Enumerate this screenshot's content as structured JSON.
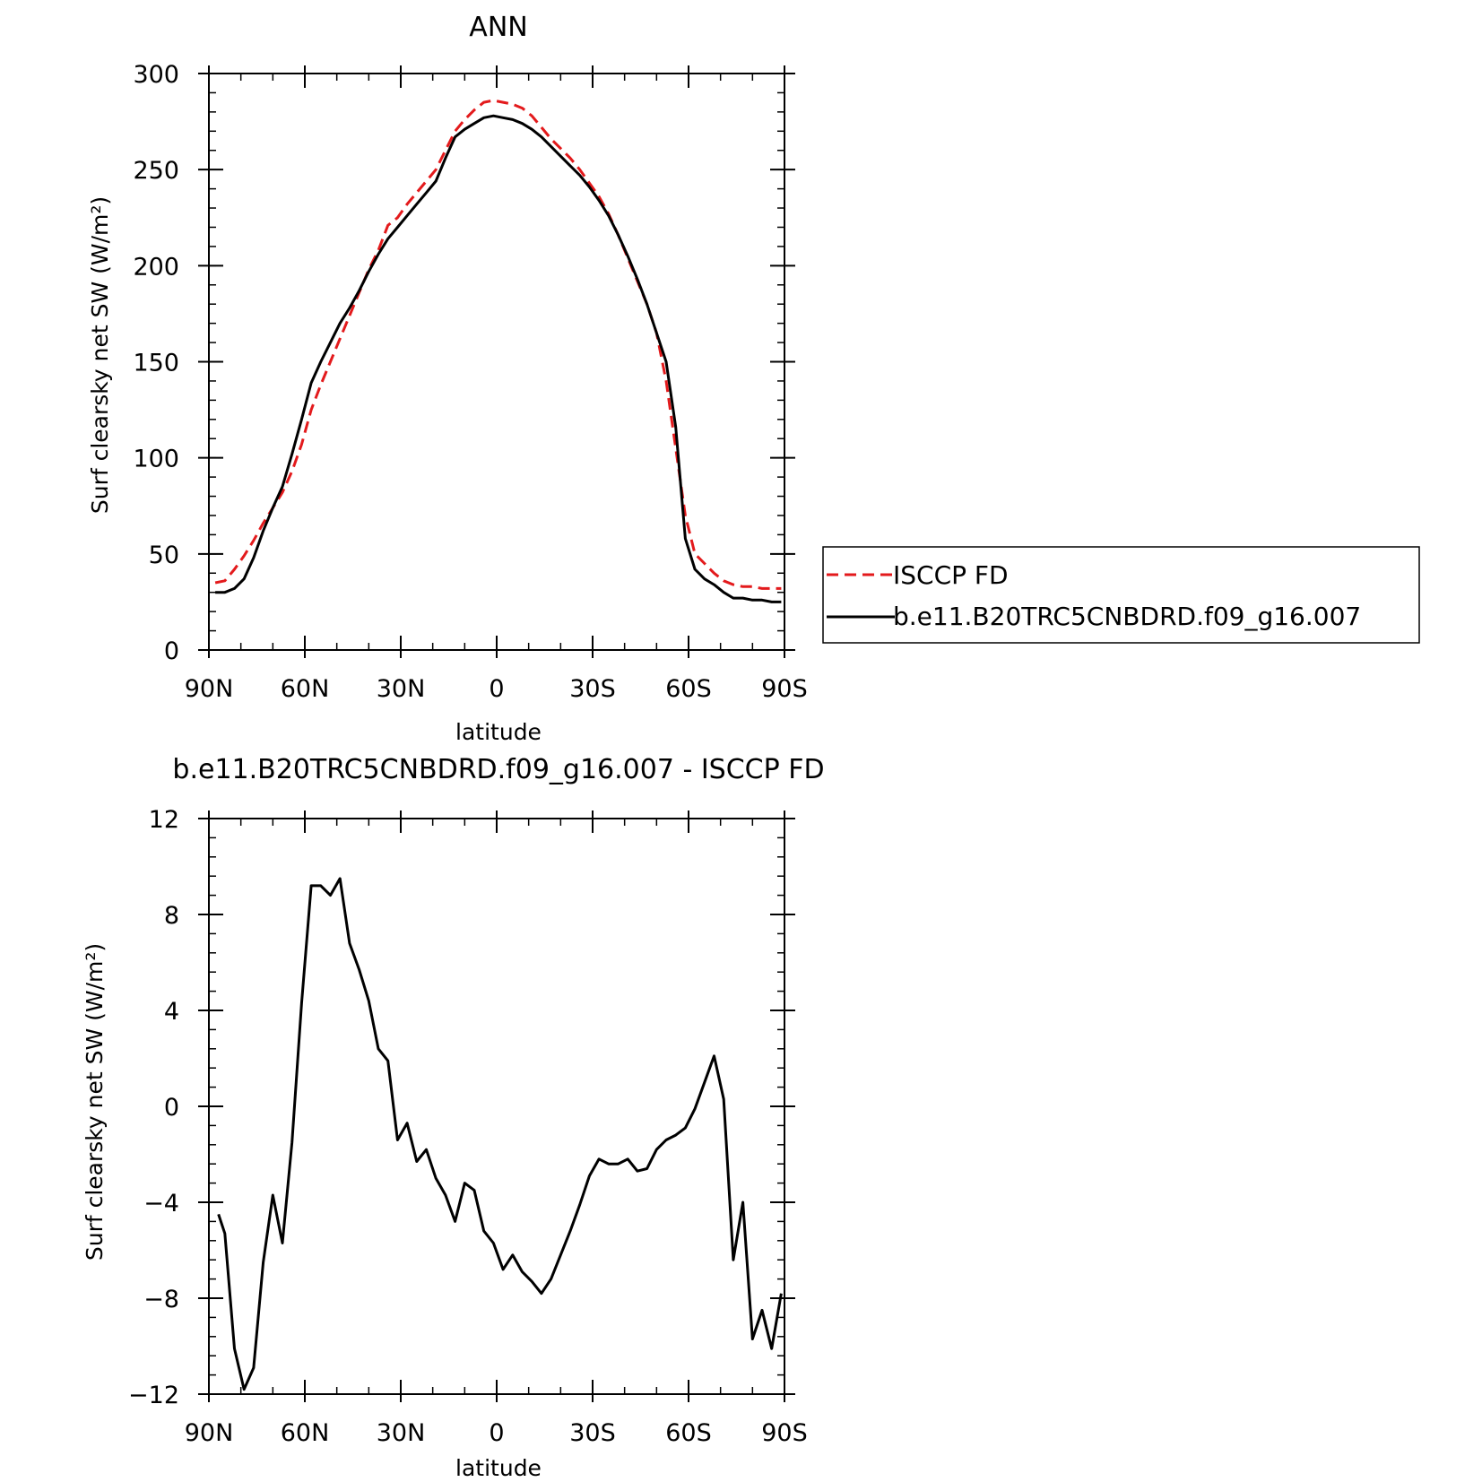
{
  "chart_data": [
    {
      "type": "line",
      "title": "ANN",
      "xlabel": "latitude",
      "ylabel": "Surf clearsky net SW (W/m²)",
      "xlim": [
        -90,
        90
      ],
      "ylim": [
        0,
        300
      ],
      "x_ticks": [
        -90,
        -60,
        -30,
        0,
        30,
        60,
        90
      ],
      "x_tick_labels": [
        "90N",
        "60N",
        "30N",
        "0",
        "30S",
        "60S",
        "90S"
      ],
      "y_ticks": [
        0,
        50,
        100,
        150,
        200,
        250,
        300
      ],
      "y_tick_labels": [
        "0",
        "50",
        "100",
        "150",
        "200",
        "250",
        "300"
      ],
      "legend_position": "right",
      "series": [
        {
          "name": "ISCCP FD",
          "color": "#e31a1c",
          "style": "dashed",
          "x": [
            -88,
            -85,
            -82,
            -79,
            -76,
            -73,
            -70,
            -67,
            -64,
            -61,
            -58,
            -55,
            -52,
            -49,
            -46,
            -43,
            -40,
            -37,
            -34,
            -31,
            -28,
            -25,
            -22,
            -19,
            -16,
            -13,
            -10,
            -7,
            -4,
            -1,
            2,
            5,
            8,
            11,
            14,
            17,
            20,
            23,
            26,
            29,
            32,
            35,
            38,
            41,
            44,
            47,
            50,
            53,
            56,
            59,
            62,
            65,
            68,
            71,
            74,
            77,
            80,
            83,
            86,
            89
          ],
          "y": [
            35,
            36,
            42,
            49,
            57,
            66,
            74,
            82,
            93,
            107,
            125,
            138,
            150,
            162,
            174,
            186,
            198,
            208,
            221,
            225,
            232,
            238,
            244,
            250,
            260,
            270,
            276,
            281,
            285,
            286,
            285,
            284,
            282,
            278,
            272,
            266,
            261,
            256,
            250,
            243,
            236,
            227,
            216,
            204,
            192,
            180,
            165,
            140,
            105,
            70,
            50,
            45,
            40,
            36,
            34,
            33,
            33,
            32,
            32,
            32
          ]
        },
        {
          "name": "b.e11.B20TRC5CNBDRD.f09_g16.007",
          "color": "#000000",
          "style": "solid",
          "x": [
            -88,
            -85,
            -82,
            -79,
            -76,
            -73,
            -70,
            -67,
            -64,
            -61,
            -58,
            -55,
            -52,
            -49,
            -46,
            -43,
            -40,
            -37,
            -34,
            -31,
            -28,
            -25,
            -22,
            -19,
            -16,
            -13,
            -10,
            -7,
            -4,
            -1,
            2,
            5,
            8,
            11,
            14,
            17,
            20,
            23,
            26,
            29,
            32,
            35,
            38,
            41,
            44,
            47,
            50,
            53,
            56,
            59,
            62,
            65,
            68,
            71,
            74,
            77,
            80,
            83,
            86,
            89
          ],
          "y": [
            30,
            30,
            32,
            37,
            48,
            62,
            74,
            85,
            102,
            120,
            139,
            150,
            160,
            170,
            178,
            187,
            197,
            206,
            214,
            220,
            226,
            232,
            238,
            244,
            256,
            267,
            271,
            274,
            277,
            278,
            277,
            276,
            274,
            271,
            267,
            262,
            257,
            252,
            247,
            241,
            234,
            226,
            216,
            205,
            193,
            180,
            165,
            150,
            116,
            58,
            42,
            37,
            34,
            30,
            27,
            27,
            26,
            26,
            25,
            25
          ]
        }
      ]
    },
    {
      "type": "line",
      "title": "b.e11.B20TRC5CNBDRD.f09_g16.007 - ISCCP FD",
      "xlabel": "latitude",
      "ylabel": "Surf clearsky net SW (W/m²)",
      "xlim": [
        -90,
        90
      ],
      "ylim": [
        -12,
        12
      ],
      "x_ticks": [
        -90,
        -60,
        -30,
        0,
        30,
        60,
        90
      ],
      "x_tick_labels": [
        "90N",
        "60N",
        "30N",
        "0",
        "30S",
        "60S",
        "90S"
      ],
      "y_ticks": [
        -12,
        -8,
        -4,
        0,
        4,
        8,
        12
      ],
      "y_tick_labels": [
        "−12",
        "−8",
        "−4",
        "0",
        "4",
        "8",
        "12"
      ],
      "series": [
        {
          "color": "#000000",
          "style": "solid",
          "x": [
            -87,
            -85,
            -82,
            -79,
            -76,
            -73,
            -70,
            -67,
            -64,
            -61,
            -58,
            -55,
            -52,
            -49,
            -46,
            -43,
            -40,
            -37,
            -34,
            -31,
            -28,
            -25,
            -22,
            -19,
            -16,
            -13,
            -10,
            -7,
            -4,
            -1,
            2,
            5,
            8,
            11,
            14,
            17,
            20,
            23,
            26,
            29,
            32,
            35,
            38,
            41,
            44,
            47,
            50,
            53,
            56,
            59,
            62,
            65,
            68,
            71,
            74,
            77,
            80,
            83,
            86,
            89
          ],
          "y": [
            -4.5,
            -5.3,
            -10.1,
            -11.8,
            -10.9,
            -6.5,
            -3.7,
            -5.7,
            -1.5,
            4.3,
            9.2,
            9.2,
            8.8,
            9.5,
            6.8,
            5.7,
            4.4,
            2.4,
            1.9,
            -1.4,
            -0.7,
            -2.3,
            -1.8,
            -3.0,
            -3.7,
            -4.8,
            -3.2,
            -3.5,
            -5.2,
            -5.7,
            -6.8,
            -6.2,
            -6.9,
            -7.3,
            -7.8,
            -7.2,
            -6.2,
            -5.2,
            -4.1,
            -2.9,
            -2.2,
            -2.4,
            -2.4,
            -2.2,
            -2.7,
            -2.6,
            -1.8,
            -1.4,
            -1.2,
            -0.9,
            -0.1,
            1.0,
            2.1,
            0.3,
            -6.4,
            -4.0,
            -9.7,
            -8.5,
            -10.1,
            -7.8
          ]
        }
      ]
    }
  ]
}
